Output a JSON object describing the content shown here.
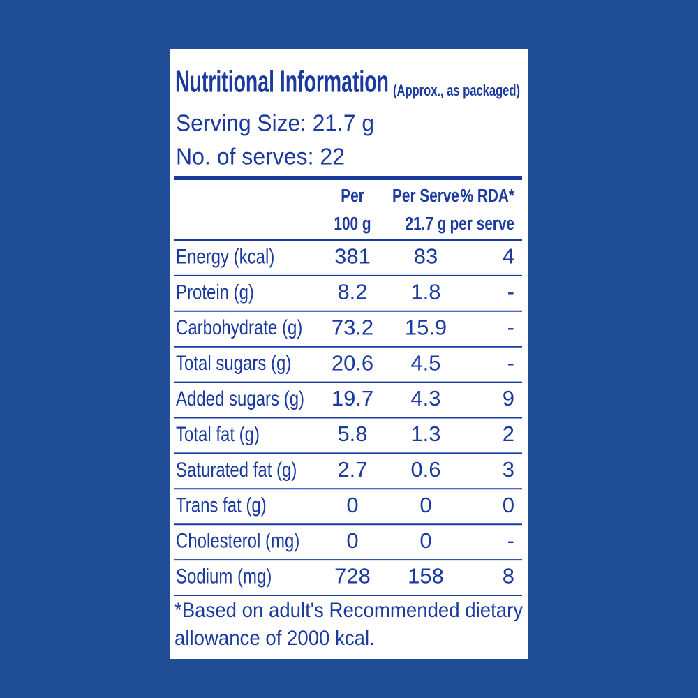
{
  "label": {
    "title": "Nutritional Information",
    "subtitle": "(Approx., as packaged)",
    "serving_size": "Serving Size: 21.7 g",
    "serves": "No. of serves: 22",
    "table": {
      "columns": [
        [
          "Per",
          "100 g"
        ],
        [
          "Per Serve",
          "21.7 g"
        ],
        [
          "% RDA*",
          "per serve"
        ]
      ],
      "rows": [
        [
          "Energy (kcal)",
          "381",
          "83",
          "4"
        ],
        [
          "Protein (g)",
          "8.2",
          "1.8",
          "-"
        ],
        [
          "Carbohydrate (g)",
          "73.2",
          "15.9",
          "-"
        ],
        [
          "Total sugars (g)",
          "20.6",
          "4.5",
          "-"
        ],
        [
          "Added sugars (g)",
          "19.7",
          "4.3",
          "9"
        ],
        [
          "Total fat (g)",
          "5.8",
          "1.3",
          "2"
        ],
        [
          "Saturated fat (g)",
          "2.7",
          "0.6",
          "3"
        ],
        [
          "Trans fat (g)",
          "0",
          "0",
          "0"
        ],
        [
          "Cholesterol (mg)",
          "0",
          "0",
          "-"
        ],
        [
          "Sodium (mg)",
          "728",
          "158",
          "8"
        ]
      ]
    },
    "footnote": [
      "*Based on adult's Recommended dietary",
      "allowance of 2000 kcal."
    ]
  }
}
